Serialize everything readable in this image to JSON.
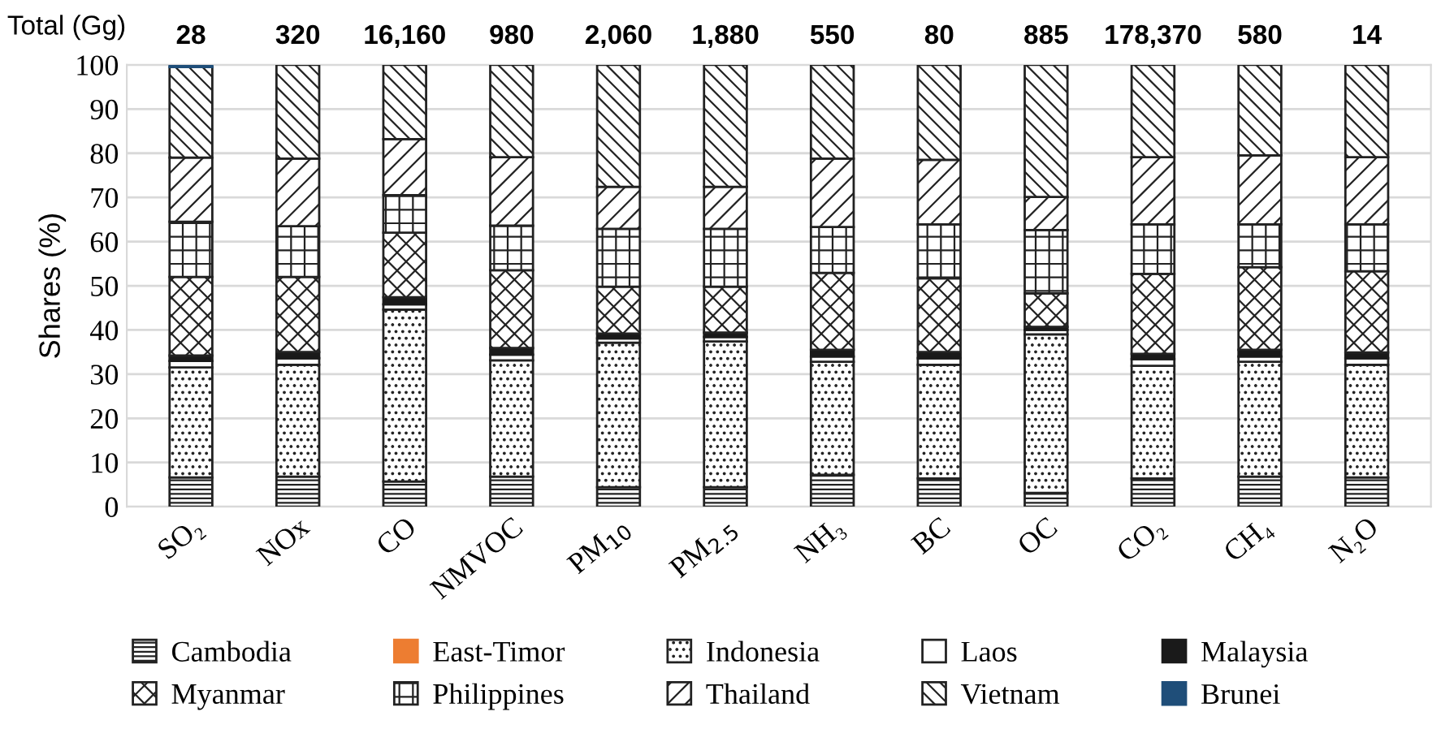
{
  "chart_data": {
    "type": "bar",
    "stacked": true,
    "ylabel": "Shares (%)",
    "categories": [
      "SO₂",
      "NOx",
      "CO",
      "NMVOC",
      "PM$_{10}$",
      "PM$_{2.5}$",
      "NH₃",
      "BC",
      "OC",
      "CO₂",
      "CH₄",
      "N₂O"
    ],
    "series": [
      {
        "name": "Cambodia",
        "color": "#222222",
        "values": [
          6.6,
          6.8,
          5.7,
          6.8,
          4.4,
          4.4,
          7.2,
          6.4,
          3.1,
          6.4,
          6.8,
          6.6
        ]
      },
      {
        "name": "East-Timor",
        "color": "#ed7d31",
        "values": [
          null,
          null,
          null,
          null,
          null,
          null,
          null,
          null,
          null,
          null,
          null,
          null
        ]
      },
      {
        "name": "Indonesia",
        "color": "#222222",
        "values": [
          24.9,
          25.3,
          38.9,
          26.3,
          32.7,
          33,
          25.6,
          25.7,
          35.9,
          25.5,
          26,
          25.5
        ]
      },
      {
        "name": "Laos",
        "color": "#ffffff",
        "values": [
          1.5,
          1.5,
          1.2,
          1.3,
          1.0,
          1.0,
          1.2,
          1.5,
          1.0,
          1.5,
          1.2,
          1.5
        ]
      },
      {
        "name": "Malaysia",
        "color": "#1a1a1a",
        "values": [
          1.2,
          1.4,
          1.6,
          1.5,
          1.1,
          1.0,
          1.5,
          1.4,
          0.7,
          1.2,
          1.5,
          1.3
        ]
      },
      {
        "name": "Myanmar",
        "color": "#222222",
        "values": [
          17.8,
          17,
          14.6,
          17.6,
          10.6,
          10.4,
          17.4,
          16.7,
          7.6,
          18.1,
          18.7,
          18.4
        ]
      },
      {
        "name": "Philippines",
        "color": "#222222",
        "values": [
          12.5,
          11.5,
          8.5,
          10.1,
          13.1,
          13.1,
          10.4,
          12.2,
          14.3,
          11.2,
          9.7,
          10.6
        ]
      },
      {
        "name": "Thailand",
        "color": "#222222",
        "values": [
          14.5,
          15.3,
          12.7,
          15.5,
          9.5,
          9.5,
          15.5,
          14.6,
          7.5,
          15.2,
          15.6,
          15.2
        ]
      },
      {
        "name": "Vietnam",
        "color": "#222222",
        "values": [
          20.5,
          21.2,
          16.8,
          20.9,
          27.6,
          27.6,
          21.2,
          21.5,
          29.9,
          20.9,
          20.5,
          20.9
        ]
      },
      {
        "name": "Brunei",
        "color": "#1f4e79",
        "values": [
          0.5,
          null,
          null,
          null,
          null,
          null,
          null,
          null,
          null,
          null,
          null,
          null
        ]
      }
    ],
    "annotations": [
      "Total (Gg)",
      "28",
      "320",
      "16,160",
      "980",
      "2,060",
      "1,880",
      "550",
      "80",
      "885",
      "178,370",
      "580",
      "14"
    ],
    "ylim": [
      0,
      100
    ],
    "yticks": [
      0,
      10,
      20,
      30,
      40,
      50,
      60,
      70,
      80,
      90,
      100
    ],
    "grid": "y",
    "legend": "bottom"
  }
}
